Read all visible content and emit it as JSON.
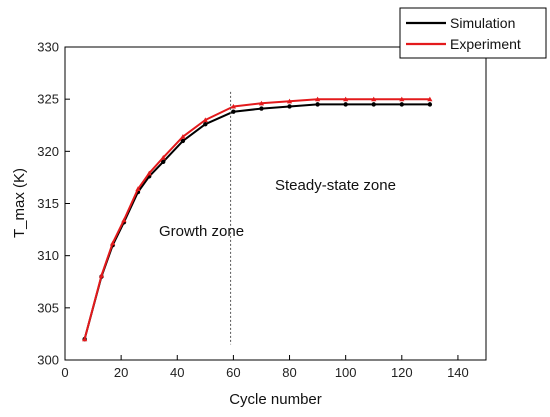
{
  "chart_data": {
    "type": "line",
    "xlabel": "Cycle number",
    "ylabel": "T_max (K)",
    "xlim": [
      0,
      150
    ],
    "ylim": [
      300,
      330
    ],
    "xticks": [
      0,
      20,
      40,
      60,
      80,
      100,
      120,
      140
    ],
    "yticks": [
      300,
      305,
      310,
      315,
      320,
      325,
      330
    ],
    "grid": false,
    "legend_position": "top-right",
    "series": [
      {
        "name": "Simulation",
        "color": "#000000",
        "marker": "circle",
        "x": [
          7,
          13,
          17,
          21,
          26,
          30,
          35,
          42,
          50,
          60,
          70,
          80,
          90,
          100,
          110,
          120,
          130
        ],
        "y": [
          302.0,
          308.0,
          311.0,
          313.2,
          316.1,
          317.6,
          319.0,
          321.0,
          322.6,
          323.8,
          324.1,
          324.3,
          324.5,
          324.5,
          324.5,
          324.5,
          324.5
        ]
      },
      {
        "name": "Experiment",
        "color": "#e31a1c",
        "marker": "triangle",
        "x": [
          7,
          13,
          17,
          21,
          26,
          30,
          35,
          42,
          50,
          60,
          70,
          80,
          90,
          100,
          110,
          120,
          130
        ],
        "y": [
          302.0,
          308.1,
          311.2,
          313.4,
          316.4,
          317.9,
          319.4,
          321.4,
          323.0,
          324.3,
          324.6,
          324.8,
          325.0,
          325.0,
          325.0,
          325.0,
          325.0
        ]
      }
    ],
    "divider_x": 59,
    "annotations": {
      "growth": "Growth zone",
      "steady": "Steady-state zone"
    }
  }
}
